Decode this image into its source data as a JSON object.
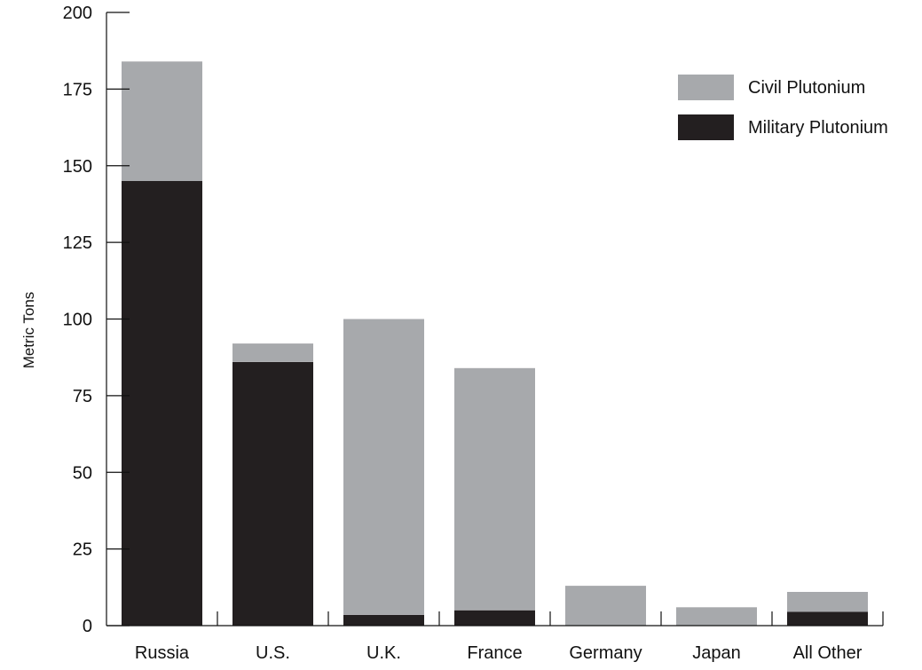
{
  "chart_data": {
    "type": "bar",
    "stacked": true,
    "title": "",
    "xlabel": "",
    "ylabel": "Metric Tons",
    "categories": [
      "Russia",
      "U.S.",
      "U.K.",
      "France",
      "Germany",
      "Japan",
      "All Other"
    ],
    "series": [
      {
        "name": "Military Plutonium",
        "color": "#231f20",
        "values": [
          145,
          86,
          3.5,
          5,
          0,
          0,
          4.5
        ]
      },
      {
        "name": "Civil Plutonium",
        "color": "#a7a9ac",
        "values": [
          39,
          6,
          96.5,
          79,
          13,
          6,
          6.5
        ]
      }
    ],
    "ylim": [
      0,
      200
    ],
    "yticks": [
      "0",
      "25",
      "50",
      "75",
      "100",
      "125",
      "150",
      "175",
      "200"
    ],
    "grid": false,
    "legend_position": "top-right",
    "legend": [
      {
        "label": "Civil Plutonium",
        "color": "#a7a9ac"
      },
      {
        "label": "Military Plutonium",
        "color": "#231f20"
      }
    ]
  }
}
